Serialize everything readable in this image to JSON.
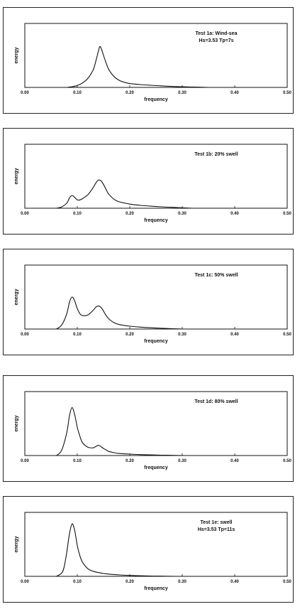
{
  "chart_data": [
    {
      "type": "line",
      "annotation": [
        "Test 1a: Wind-sea",
        "Hs=3.53 Tp=7s"
      ],
      "xlabel": "frequency",
      "ylabel": "energy",
      "xlim": [
        0,
        0.5
      ],
      "ylim": [
        0,
        1
      ],
      "xticks": [
        "0.00",
        "0.10",
        "0.20",
        "0.30",
        "0.40",
        "0.50"
      ],
      "grid": false,
      "series": [
        {
          "x": [
            0.08,
            0.09,
            0.1,
            0.11,
            0.12,
            0.13,
            0.135,
            0.14,
            0.143,
            0.146,
            0.15,
            0.155,
            0.16,
            0.17,
            0.18,
            0.19,
            0.2,
            0.22,
            0.24,
            0.26,
            0.28,
            0.3,
            0.33,
            0.35
          ],
          "y": [
            0.0,
            0.01,
            0.03,
            0.07,
            0.14,
            0.27,
            0.4,
            0.56,
            0.64,
            0.6,
            0.5,
            0.38,
            0.28,
            0.17,
            0.11,
            0.08,
            0.06,
            0.045,
            0.033,
            0.024,
            0.016,
            0.01,
            0.004,
            0.0
          ]
        }
      ]
    },
    {
      "type": "line",
      "annotation": [
        "Test 1b: 20% swell"
      ],
      "xlabel": "frequency",
      "ylabel": "energy",
      "xlim": [
        0,
        0.5
      ],
      "ylim": [
        0,
        1
      ],
      "xticks": [
        "0.00",
        "0.10",
        "0.20",
        "0.30",
        "0.40",
        "0.50"
      ],
      "grid": false,
      "series": [
        {
          "x": [
            0.06,
            0.07,
            0.08,
            0.085,
            0.09,
            0.095,
            0.1,
            0.105,
            0.11,
            0.12,
            0.13,
            0.135,
            0.14,
            0.145,
            0.15,
            0.155,
            0.16,
            0.17,
            0.18,
            0.2,
            0.22,
            0.24,
            0.26,
            0.28,
            0.3,
            0.32
          ],
          "y": [
            0.0,
            0.02,
            0.08,
            0.16,
            0.2,
            0.17,
            0.13,
            0.13,
            0.15,
            0.21,
            0.32,
            0.39,
            0.44,
            0.43,
            0.37,
            0.29,
            0.22,
            0.14,
            0.1,
            0.065,
            0.045,
            0.032,
            0.022,
            0.014,
            0.007,
            0.0
          ]
        }
      ]
    },
    {
      "type": "line",
      "annotation": [
        "Test 1c: 50% swell"
      ],
      "xlabel": "frequency",
      "ylabel": "energy",
      "xlim": [
        0,
        0.5
      ],
      "ylim": [
        0,
        1
      ],
      "xticks": [
        "0.00",
        "0.10",
        "0.20",
        "0.30",
        "0.40",
        "0.50"
      ],
      "grid": false,
      "series": [
        {
          "x": [
            0.06,
            0.07,
            0.08,
            0.085,
            0.09,
            0.095,
            0.1,
            0.105,
            0.11,
            0.12,
            0.13,
            0.135,
            0.14,
            0.145,
            0.15,
            0.155,
            0.16,
            0.17,
            0.18,
            0.2,
            0.22,
            0.24,
            0.26,
            0.28,
            0.3
          ],
          "y": [
            0.0,
            0.06,
            0.24,
            0.42,
            0.5,
            0.44,
            0.32,
            0.24,
            0.21,
            0.22,
            0.29,
            0.34,
            0.36,
            0.34,
            0.28,
            0.21,
            0.16,
            0.1,
            0.07,
            0.045,
            0.03,
            0.02,
            0.012,
            0.006,
            0.0
          ]
        }
      ]
    },
    {
      "type": "line",
      "annotation": [
        "Test 1d: 80% swell"
      ],
      "xlabel": "frequency",
      "ylabel": "energy",
      "xlim": [
        0,
        0.5
      ],
      "ylim": [
        0,
        1
      ],
      "xticks": [
        "0.00",
        "0.10",
        "0.20",
        "0.30",
        "0.40",
        "0.50"
      ],
      "grid": false,
      "series": [
        {
          "x": [
            0.06,
            0.07,
            0.08,
            0.085,
            0.09,
            0.095,
            0.1,
            0.105,
            0.11,
            0.12,
            0.13,
            0.135,
            0.14,
            0.145,
            0.15,
            0.155,
            0.16,
            0.17,
            0.18,
            0.2,
            0.22,
            0.24,
            0.26,
            0.28,
            0.3
          ],
          "y": [
            0.0,
            0.08,
            0.36,
            0.62,
            0.75,
            0.64,
            0.44,
            0.3,
            0.2,
            0.13,
            0.12,
            0.14,
            0.16,
            0.14,
            0.11,
            0.085,
            0.065,
            0.045,
            0.032,
            0.022,
            0.015,
            0.01,
            0.006,
            0.003,
            0.0
          ]
        }
      ]
    },
    {
      "type": "line",
      "annotation": [
        "Test 1e: swell",
        "Hs=3.53 Tp=11s"
      ],
      "xlabel": "frequency",
      "ylabel": "energy",
      "xlim": [
        0,
        0.5
      ],
      "ylim": [
        0,
        1
      ],
      "xticks": [
        "0.00",
        "0.10",
        "0.20",
        "0.30",
        "0.40",
        "0.50"
      ],
      "grid": false,
      "series": [
        {
          "x": [
            0.06,
            0.07,
            0.075,
            0.08,
            0.085,
            0.09,
            0.095,
            0.1,
            0.105,
            0.11,
            0.12,
            0.13,
            0.14,
            0.15,
            0.16,
            0.18,
            0.2,
            0.22,
            0.24,
            0.26,
            0.28,
            0.3
          ],
          "y": [
            0.0,
            0.05,
            0.15,
            0.38,
            0.66,
            0.82,
            0.72,
            0.48,
            0.32,
            0.22,
            0.12,
            0.08,
            0.06,
            0.045,
            0.035,
            0.022,
            0.014,
            0.009,
            0.005,
            0.003,
            0.001,
            0.0
          ]
        }
      ]
    }
  ]
}
